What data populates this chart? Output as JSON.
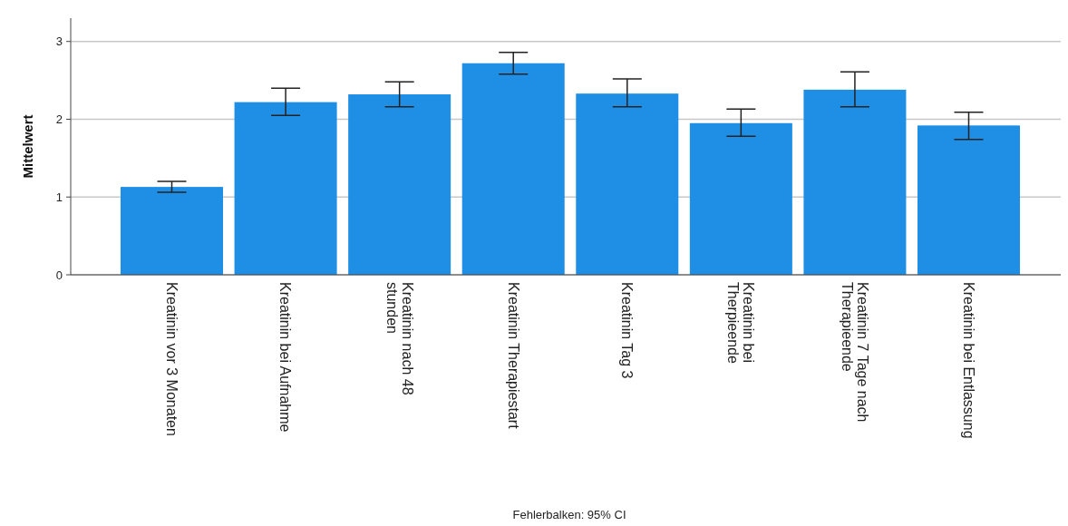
{
  "chart_data": {
    "type": "bar",
    "ylabel": "Mittelwert",
    "categories": [
      "Kreatinin vor 3 Monaten",
      "Kreatinin bei Aufnahme",
      "Kreatinin nach 48 stunden",
      "Kreatinin Therapiestart",
      "Kreatinin Tag 3",
      "Kreatinin bei Therpieende",
      "Kreatinin 7 Tage nach Therapieende",
      "Kreatinin bei Entlassung"
    ],
    "values": [
      1.13,
      2.22,
      2.32,
      2.72,
      2.33,
      1.95,
      2.38,
      1.92
    ],
    "errors": [
      [
        1.06,
        1.2
      ],
      [
        2.05,
        2.4
      ],
      [
        2.16,
        2.48
      ],
      [
        2.58,
        2.86
      ],
      [
        2.16,
        2.52
      ],
      [
        1.78,
        2.13
      ],
      [
        2.16,
        2.61
      ],
      [
        1.74,
        2.09
      ]
    ],
    "color": "#1f8fe6",
    "ylim": [
      0,
      3.3
    ],
    "yticks": [
      0,
      1,
      2,
      3
    ],
    "grid": "y",
    "annotations": [
      "Fehlerbalken: 95% CI"
    ]
  }
}
